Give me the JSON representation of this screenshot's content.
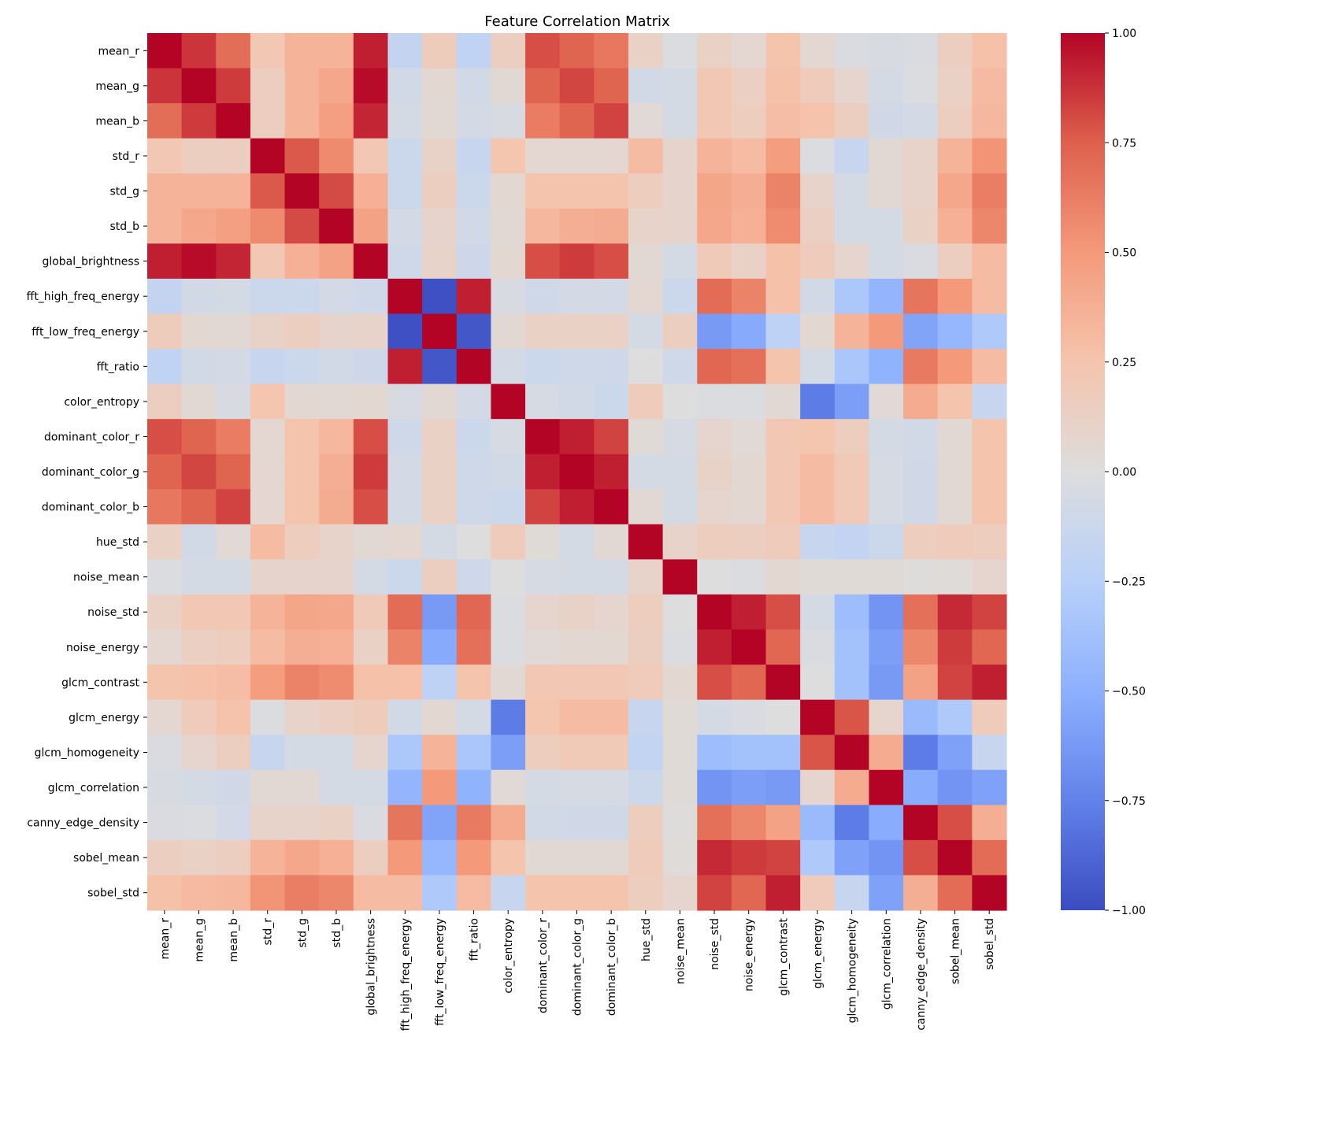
{
  "chart_data": {
    "type": "heatmap",
    "title": "Feature Correlation Matrix",
    "xlabel": "",
    "ylabel": "",
    "colormap": "coolwarm",
    "vmin": -1.0,
    "vmax": 1.0,
    "colorbar": {
      "ticks": [
        1.0,
        0.75,
        0.5,
        0.25,
        0.0,
        -0.25,
        -0.5,
        -0.75,
        -1.0
      ],
      "tick_labels": [
        "1.00",
        "0.75",
        "0.50",
        "0.25",
        "0.00",
        "−0.25",
        "−0.50",
        "−0.75",
        "−1.00"
      ],
      "placement": "right"
    },
    "labels": [
      "mean_r",
      "mean_g",
      "mean_b",
      "std_r",
      "std_g",
      "std_b",
      "global_brightness",
      "fft_high_freq_energy",
      "fft_low_freq_energy",
      "fft_ratio",
      "color_entropy",
      "dominant_color_r",
      "dominant_color_g",
      "dominant_color_b",
      "hue_std",
      "noise_mean",
      "noise_std",
      "noise_energy",
      "glcm_contrast",
      "glcm_energy",
      "glcm_homogeneity",
      "glcm_correlation",
      "canny_edge_density",
      "sobel_mean",
      "sobel_std"
    ],
    "matrix": [
      [
        1.0,
        0.87,
        0.69,
        0.22,
        0.35,
        0.35,
        0.93,
        -0.17,
        0.17,
        -0.19,
        0.15,
        0.8,
        0.73,
        0.65,
        0.12,
        -0.02,
        0.12,
        0.07,
        0.25,
        0.07,
        -0.03,
        -0.04,
        -0.03,
        0.15,
        0.27
      ],
      [
        0.87,
        1.0,
        0.85,
        0.15,
        0.35,
        0.42,
        0.98,
        -0.08,
        0.06,
        -0.08,
        0.05,
        0.73,
        0.82,
        0.73,
        -0.08,
        -0.06,
        0.22,
        0.14,
        0.27,
        0.18,
        0.08,
        -0.06,
        -0.02,
        0.12,
        0.31
      ],
      [
        0.69,
        0.85,
        1.0,
        0.15,
        0.35,
        0.47,
        0.91,
        -0.06,
        0.05,
        -0.07,
        -0.04,
        0.63,
        0.73,
        0.83,
        0.04,
        -0.06,
        0.22,
        0.16,
        0.29,
        0.26,
        0.15,
        -0.09,
        -0.07,
        0.15,
        0.33
      ],
      [
        0.22,
        0.15,
        0.15,
        1.0,
        0.77,
        0.57,
        0.22,
        -0.12,
        0.11,
        -0.15,
        0.24,
        0.07,
        0.07,
        0.07,
        0.3,
        0.09,
        0.35,
        0.3,
        0.48,
        -0.02,
        -0.15,
        0.05,
        0.1,
        0.35,
        0.52
      ],
      [
        0.35,
        0.35,
        0.35,
        0.77,
        1.0,
        0.81,
        0.37,
        -0.12,
        0.15,
        -0.12,
        0.06,
        0.25,
        0.25,
        0.25,
        0.16,
        0.09,
        0.43,
        0.38,
        0.6,
        0.1,
        -0.06,
        0.05,
        0.1,
        0.42,
        0.62
      ],
      [
        0.35,
        0.42,
        0.47,
        0.57,
        0.81,
        1.0,
        0.45,
        -0.07,
        0.09,
        -0.08,
        0.05,
        0.32,
        0.38,
        0.39,
        0.1,
        0.09,
        0.42,
        0.37,
        0.56,
        0.14,
        -0.06,
        -0.06,
        0.12,
        0.37,
        0.58
      ],
      [
        0.93,
        0.98,
        0.91,
        0.22,
        0.37,
        0.45,
        1.0,
        -0.1,
        0.1,
        -0.11,
        0.06,
        0.8,
        0.85,
        0.8,
        0.05,
        -0.06,
        0.19,
        0.12,
        0.27,
        0.18,
        0.08,
        -0.06,
        -0.03,
        0.15,
        0.3
      ],
      [
        -0.17,
        -0.08,
        -0.06,
        -0.12,
        -0.12,
        -0.07,
        -0.1,
        1.0,
        -0.98,
        0.93,
        -0.04,
        -0.1,
        -0.07,
        -0.07,
        0.07,
        -0.12,
        0.7,
        0.6,
        0.27,
        -0.08,
        -0.32,
        -0.46,
        0.66,
        0.5,
        0.3
      ],
      [
        0.17,
        0.06,
        0.05,
        0.11,
        0.15,
        0.09,
        0.1,
        -0.98,
        1.0,
        -0.95,
        0.05,
        0.12,
        0.12,
        0.12,
        -0.06,
        0.15,
        -0.62,
        -0.53,
        -0.21,
        0.06,
        0.35,
        0.5,
        -0.57,
        -0.45,
        -0.3
      ],
      [
        -0.19,
        -0.08,
        -0.07,
        -0.15,
        -0.12,
        -0.08,
        -0.11,
        0.93,
        -0.95,
        1.0,
        -0.07,
        -0.12,
        -0.1,
        -0.1,
        0.0,
        -0.1,
        0.72,
        0.68,
        0.25,
        -0.06,
        -0.33,
        -0.48,
        0.64,
        0.5,
        0.3
      ],
      [
        0.15,
        0.05,
        -0.04,
        0.24,
        0.06,
        0.05,
        0.06,
        -0.04,
        0.05,
        -0.07,
        1.0,
        -0.05,
        -0.08,
        -0.12,
        0.18,
        0.0,
        -0.02,
        -0.02,
        0.05,
        -0.78,
        -0.6,
        0.04,
        0.4,
        0.25,
        -0.15
      ],
      [
        0.8,
        0.73,
        0.63,
        0.07,
        0.25,
        0.32,
        0.8,
        -0.1,
        0.12,
        -0.12,
        -0.05,
        1.0,
        0.93,
        0.83,
        0.03,
        -0.05,
        0.08,
        0.04,
        0.22,
        0.24,
        0.16,
        -0.06,
        -0.08,
        0.05,
        0.25
      ],
      [
        0.73,
        0.82,
        0.73,
        0.07,
        0.25,
        0.38,
        0.85,
        -0.07,
        0.12,
        -0.1,
        -0.08,
        0.93,
        1.0,
        0.93,
        -0.06,
        -0.06,
        0.11,
        0.06,
        0.22,
        0.3,
        0.2,
        -0.05,
        -0.09,
        0.05,
        0.25
      ],
      [
        0.65,
        0.73,
        0.83,
        0.07,
        0.25,
        0.39,
        0.8,
        -0.07,
        0.12,
        -0.1,
        -0.12,
        0.83,
        0.93,
        1.0,
        0.05,
        -0.06,
        0.08,
        0.06,
        0.22,
        0.3,
        0.2,
        -0.05,
        -0.09,
        0.05,
        0.25
      ],
      [
        0.12,
        -0.08,
        0.04,
        0.3,
        0.16,
        0.1,
        0.05,
        0.07,
        -0.06,
        0.0,
        0.18,
        0.03,
        -0.06,
        0.05,
        1.0,
        0.1,
        0.16,
        0.15,
        0.18,
        -0.15,
        -0.18,
        -0.12,
        0.16,
        0.18,
        0.16
      ],
      [
        -0.02,
        -0.06,
        -0.06,
        0.09,
        0.09,
        0.09,
        -0.06,
        -0.12,
        0.15,
        -0.1,
        0.0,
        -0.05,
        -0.06,
        -0.06,
        0.1,
        1.0,
        0.0,
        -0.02,
        0.06,
        0.03,
        0.03,
        0.03,
        0.01,
        0.02,
        0.08
      ],
      [
        0.12,
        0.22,
        0.22,
        0.35,
        0.43,
        0.42,
        0.19,
        0.7,
        -0.62,
        0.72,
        -0.02,
        0.08,
        0.11,
        0.08,
        0.16,
        0.0,
        1.0,
        0.93,
        0.8,
        -0.06,
        -0.4,
        -0.65,
        0.68,
        0.9,
        0.83
      ],
      [
        0.07,
        0.14,
        0.16,
        0.3,
        0.38,
        0.37,
        0.12,
        0.6,
        -0.53,
        0.68,
        -0.02,
        0.04,
        0.06,
        0.06,
        0.15,
        -0.02,
        0.93,
        1.0,
        0.72,
        -0.03,
        -0.37,
        -0.6,
        0.58,
        0.85,
        0.72
      ],
      [
        0.25,
        0.27,
        0.29,
        0.48,
        0.6,
        0.56,
        0.27,
        0.27,
        -0.21,
        0.25,
        0.05,
        0.22,
        0.22,
        0.22,
        0.18,
        0.06,
        0.8,
        0.72,
        1.0,
        0.0,
        -0.37,
        -0.62,
        0.45,
        0.83,
        0.93
      ],
      [
        0.07,
        0.18,
        0.26,
        -0.02,
        0.1,
        0.14,
        0.18,
        -0.08,
        0.06,
        -0.06,
        -0.78,
        0.24,
        0.3,
        0.3,
        -0.15,
        0.03,
        -0.06,
        -0.03,
        0.0,
        1.0,
        0.78,
        0.08,
        -0.42,
        -0.3,
        0.18
      ],
      [
        -0.03,
        0.08,
        0.15,
        -0.15,
        -0.06,
        -0.06,
        0.08,
        -0.32,
        0.35,
        -0.33,
        -0.6,
        0.16,
        0.2,
        0.2,
        -0.18,
        0.03,
        -0.4,
        -0.37,
        -0.37,
        0.78,
        1.0,
        0.4,
        -0.78,
        -0.58,
        -0.15
      ],
      [
        -0.04,
        -0.06,
        -0.09,
        0.05,
        0.05,
        -0.06,
        -0.06,
        -0.46,
        0.5,
        -0.48,
        0.04,
        -0.06,
        -0.05,
        -0.05,
        -0.12,
        0.03,
        -0.65,
        -0.6,
        -0.62,
        0.08,
        0.4,
        1.0,
        -0.52,
        -0.65,
        -0.58
      ],
      [
        -0.03,
        -0.02,
        -0.07,
        0.1,
        0.1,
        0.12,
        -0.03,
        0.66,
        -0.57,
        0.64,
        0.4,
        -0.08,
        -0.09,
        -0.09,
        0.16,
        0.01,
        0.68,
        0.58,
        0.45,
        -0.42,
        -0.78,
        -0.52,
        1.0,
        0.8,
        0.38
      ],
      [
        0.15,
        0.12,
        0.15,
        0.35,
        0.42,
        0.37,
        0.15,
        0.5,
        -0.45,
        0.5,
        0.25,
        0.05,
        0.05,
        0.05,
        0.18,
        0.02,
        0.9,
        0.85,
        0.83,
        -0.3,
        -0.58,
        -0.65,
        0.8,
        1.0,
        0.7
      ],
      [
        0.27,
        0.31,
        0.33,
        0.52,
        0.62,
        0.58,
        0.3,
        0.3,
        -0.3,
        0.3,
        -0.15,
        0.25,
        0.25,
        0.25,
        0.16,
        0.08,
        0.83,
        0.72,
        0.93,
        0.18,
        -0.15,
        -0.58,
        0.38,
        0.7,
        1.0
      ]
    ]
  }
}
